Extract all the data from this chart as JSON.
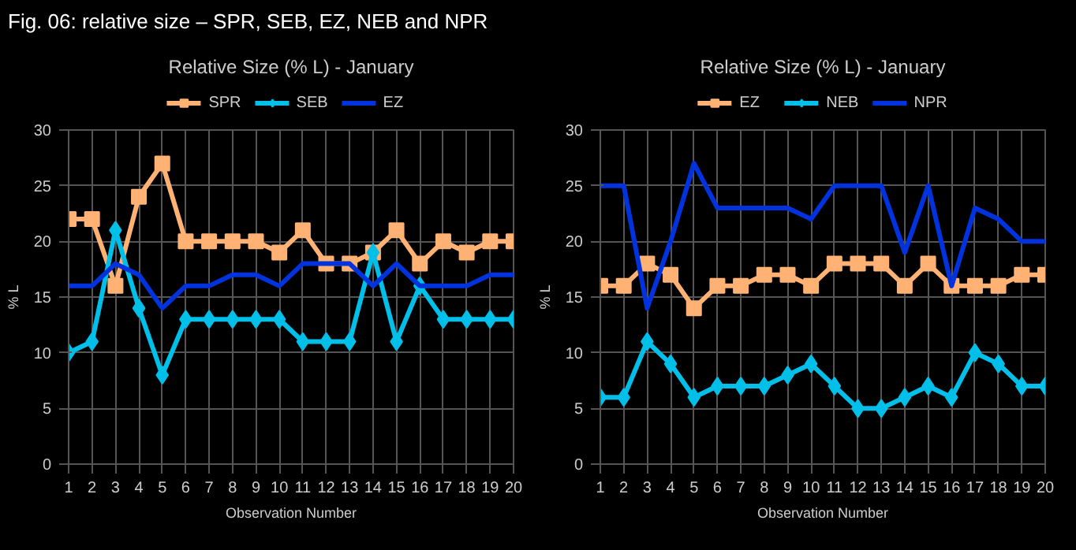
{
  "chart_data": [
    {
      "type": "line",
      "title": "Relative Size (% L) - January",
      "xlabel": "Observation Number",
      "ylabel": "% L",
      "annotations": [
        "Fig. 06: relative size – SPR, SEB, EZ, NEB and NPR"
      ],
      "x": [
        1,
        2,
        3,
        4,
        5,
        6,
        7,
        8,
        9,
        10,
        11,
        12,
        13,
        14,
        15,
        16,
        17,
        18,
        19,
        20
      ],
      "series": [
        {
          "name": "SPR",
          "color": "#ffb273",
          "marker": "square",
          "values": [
            22,
            22,
            16,
            24,
            27,
            20,
            20,
            20,
            20,
            19,
            21,
            18,
            18,
            19,
            21,
            18,
            20,
            19,
            20,
            20
          ]
        },
        {
          "name": "SEB",
          "color": "#00bfe8",
          "marker": "diamond",
          "values": [
            10,
            11,
            21,
            14,
            8,
            13,
            13,
            13,
            13,
            13,
            11,
            11,
            11,
            19,
            11,
            16,
            13,
            13,
            13,
            13
          ]
        },
        {
          "name": "EZ",
          "color": "#0033dd",
          "marker": "none",
          "values": [
            16,
            16,
            18,
            17,
            14,
            16,
            16,
            17,
            17,
            16,
            18,
            18,
            18,
            16,
            18,
            16,
            16,
            16,
            17,
            17
          ]
        }
      ],
      "xlim": [
        1,
        20
      ],
      "xticks": [
        1,
        2,
        3,
        4,
        5,
        6,
        7,
        8,
        9,
        10,
        11,
        12,
        13,
        14,
        15,
        16,
        17,
        18,
        19,
        20
      ],
      "ylim": [
        0,
        30
      ],
      "yticks": [
        0,
        5,
        10,
        15,
        20,
        25,
        30
      ],
      "grid": true,
      "legend": "top"
    },
    {
      "type": "line",
      "title": "Relative Size (% L) - January",
      "xlabel": "Observation Number",
      "ylabel": "% L",
      "x": [
        1,
        2,
        3,
        4,
        5,
        6,
        7,
        8,
        9,
        10,
        11,
        12,
        13,
        14,
        15,
        16,
        17,
        18,
        19,
        20
      ],
      "series": [
        {
          "name": "EZ",
          "color": "#ffb273",
          "marker": "square",
          "values": [
            16,
            16,
            18,
            17,
            14,
            16,
            16,
            17,
            17,
            16,
            18,
            18,
            18,
            16,
            18,
            16,
            16,
            16,
            17,
            17
          ]
        },
        {
          "name": "NEB",
          "color": "#00bfe8",
          "marker": "diamond",
          "values": [
            6,
            6,
            11,
            9,
            6,
            7,
            7,
            7,
            8,
            9,
            7,
            5,
            5,
            6,
            7,
            6,
            10,
            9,
            7,
            7
          ]
        },
        {
          "name": "NPR",
          "color": "#0033dd",
          "marker": "none",
          "values": [
            25,
            25,
            14,
            20,
            27,
            23,
            23,
            23,
            23,
            22,
            25,
            25,
            25,
            19,
            25,
            16,
            23,
            22,
            20,
            20
          ]
        }
      ],
      "xlim": [
        1,
        20
      ],
      "xticks": [
        1,
        2,
        3,
        4,
        5,
        6,
        7,
        8,
        9,
        10,
        11,
        12,
        13,
        14,
        15,
        16,
        17,
        18,
        19,
        20
      ],
      "ylim": [
        0,
        30
      ],
      "yticks": [
        0,
        5,
        10,
        15,
        20,
        25,
        30
      ],
      "grid": true,
      "legend": "top"
    }
  ]
}
